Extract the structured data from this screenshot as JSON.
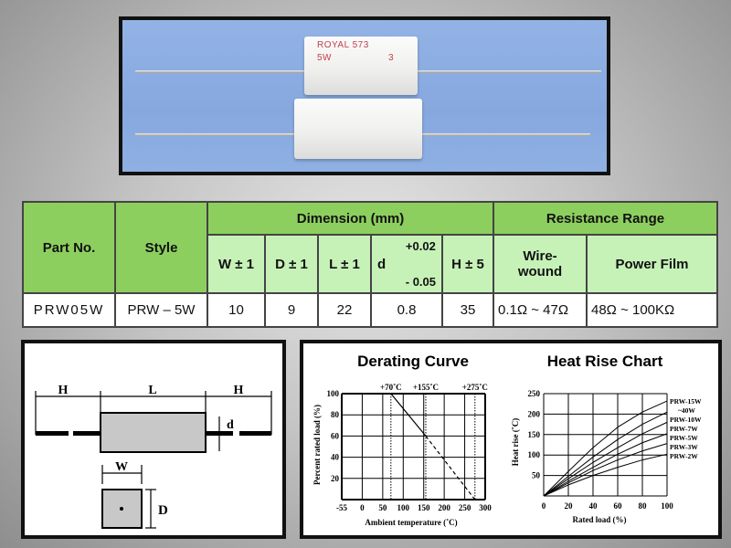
{
  "photo": {
    "marking_line1": "ROYAL 573",
    "marking_line2": "5W",
    "marking_code": "3"
  },
  "table": {
    "headers": {
      "part_no": "Part No.",
      "style": "Style",
      "dimension": "Dimension (mm)",
      "resistance_range": "Resistance Range",
      "w": "W ± 1",
      "d_col": "D ± 1",
      "l": "L ± 1",
      "lead_d": "d",
      "lead_d_plus": "+0.02",
      "lead_d_minus": "- 0.05",
      "h": "H ± 5",
      "wirewound_1": "Wire-",
      "wirewound_2": "wound",
      "power_film": "Power Film"
    },
    "rows": [
      {
        "part_no": "PRW05W",
        "style": "PRW – 5W",
        "w": "10",
        "d": "9",
        "l": "22",
        "lead_d": "0.8",
        "h": "35",
        "wirewound": "0.1Ω ~ 47Ω",
        "power_film": "48Ω ~ 100KΩ"
      }
    ],
    "colors": {
      "header_dark": "#8dcf5f",
      "header_light": "#c6f2b8"
    }
  },
  "dimension_diagram": {
    "label_h_left": "H",
    "label_l": "L",
    "label_h_right": "H",
    "label_d_lead": "d",
    "label_w": "W",
    "label_d_body": "D"
  },
  "chart_data": [
    {
      "type": "line",
      "title": "Derating Curve",
      "xlabel": "Ambient temperature (˚C)",
      "ylabel": "Percent rated load (%)",
      "x_ticks": [
        "-55",
        "0",
        "50",
        "100",
        "150",
        "200",
        "250",
        "300"
      ],
      "y_ticks": [
        "20",
        "40",
        "60",
        "80",
        "100"
      ],
      "xlim": [
        -55,
        300
      ],
      "ylim": [
        0,
        100
      ],
      "grid": true,
      "annotations": [
        "+70˚C",
        "+155˚C",
        "+275˚C"
      ],
      "annotation_x": [
        70,
        155,
        275
      ],
      "series": [
        {
          "style": "solid",
          "x": [
            -55,
            70,
            155
          ],
          "y": [
            100,
            100,
            60
          ]
        },
        {
          "style": "dashed",
          "x": [
            155,
            275
          ],
          "y": [
            60,
            0
          ]
        }
      ]
    },
    {
      "type": "line",
      "title": "Heat Rise Chart",
      "xlabel": "Rated load (%)",
      "ylabel": "Heat rise (˚C)",
      "x_ticks": [
        "0",
        "20",
        "40",
        "60",
        "80",
        "100"
      ],
      "y_ticks": [
        "50",
        "100",
        "150",
        "200",
        "250"
      ],
      "xlim": [
        0,
        100
      ],
      "ylim": [
        0,
        250
      ],
      "grid": true,
      "x": [
        0,
        20,
        40,
        60,
        80,
        100
      ],
      "series": [
        {
          "name": "PRW-15W ~40W",
          "label_1": "PRW-15W",
          "label_2": "~40W",
          "values": [
            0,
            60,
            118,
            168,
            205,
            232
          ]
        },
        {
          "name": "PRW-10W",
          "label_1": "PRW-10W",
          "values": [
            0,
            48,
            95,
            138,
            175,
            205
          ]
        },
        {
          "name": "PRW-7W",
          "label_1": "PRW-7W",
          "values": [
            0,
            42,
            82,
            118,
            152,
            180
          ]
        },
        {
          "name": "PRW-5W",
          "label_1": "PRW-5W",
          "values": [
            0,
            36,
            70,
            102,
            130,
            152
          ]
        },
        {
          "name": "PRW-3W",
          "label_1": "PRW-3W",
          "values": [
            0,
            32,
            62,
            88,
            110,
            128
          ]
        },
        {
          "name": "PRW-2W",
          "label_1": "PRW-2W",
          "values": [
            0,
            27,
            50,
            70,
            88,
            102
          ]
        }
      ]
    }
  ]
}
